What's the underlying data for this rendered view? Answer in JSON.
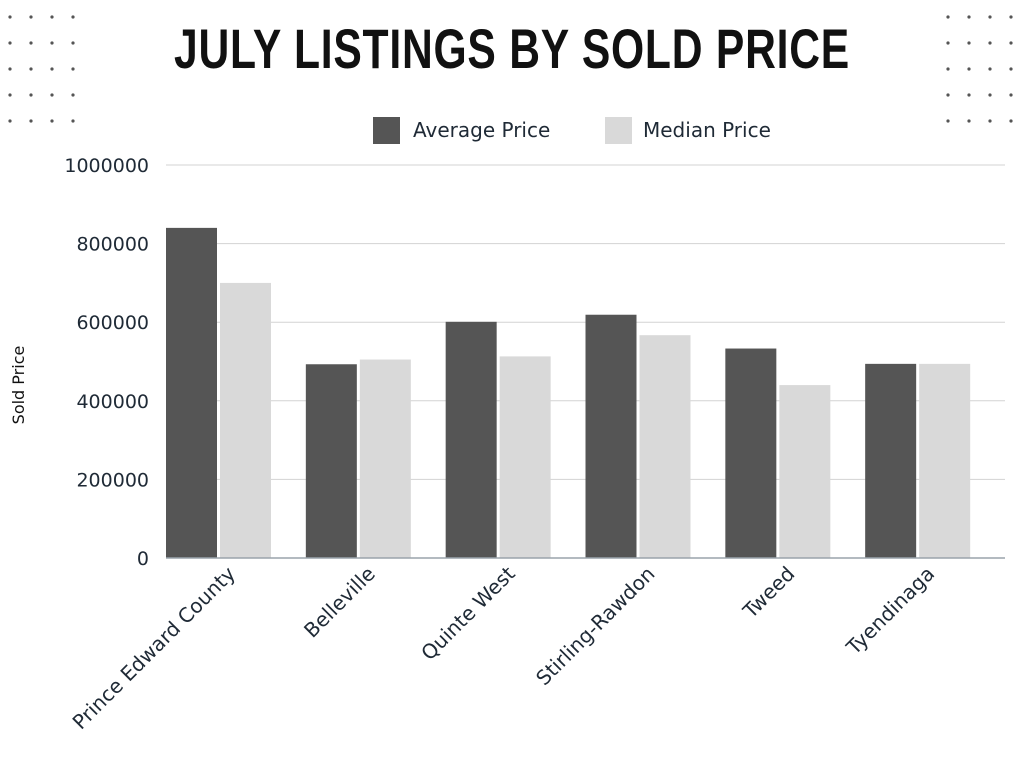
{
  "chart_data": {
    "type": "bar",
    "title": "JULY LISTINGS BY SOLD PRICE",
    "xlabel": "",
    "ylabel": "Sold Price",
    "ylim": [
      0,
      1000000
    ],
    "yticks": [
      "0",
      "200000",
      "400000",
      "600000",
      "800000",
      "1000000"
    ],
    "categories": [
      "Prince Edward County",
      "Belleville",
      "Quinte West",
      "Stirling-Rawdon",
      "Tweed",
      "Tyendinaga"
    ],
    "series": [
      {
        "name": "Average Price",
        "color": "#555555",
        "values": [
          840000,
          493000,
          601000,
          619000,
          533000,
          494000
        ]
      },
      {
        "name": "Median Price",
        "color": "#d9d9d9",
        "values": [
          700000,
          505000,
          513000,
          567000,
          440000,
          494000
        ]
      }
    ],
    "grid": true,
    "legend": "top"
  }
}
